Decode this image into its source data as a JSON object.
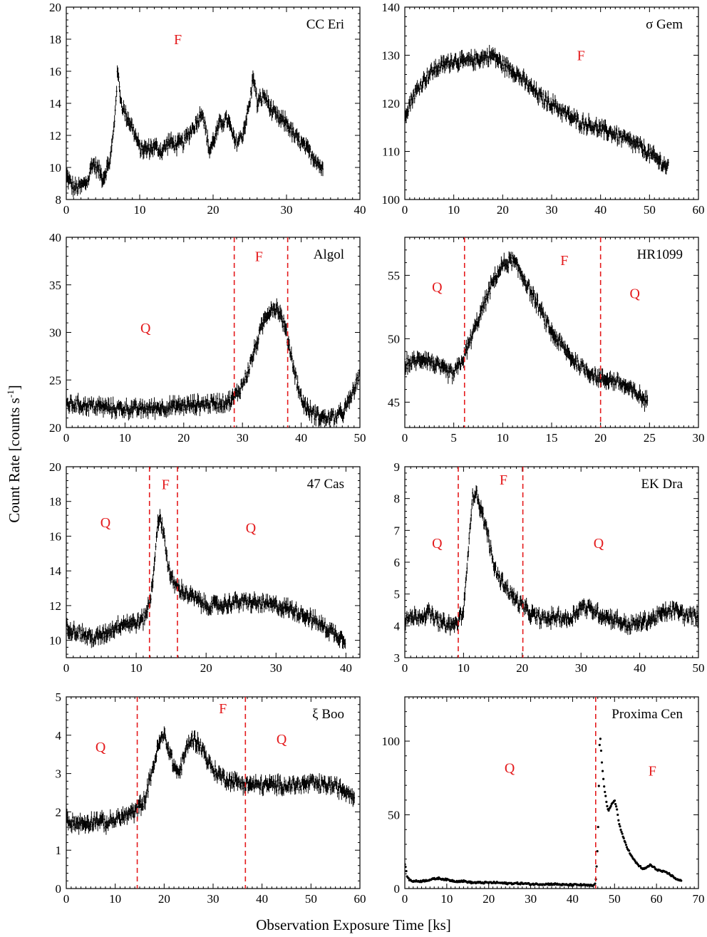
{
  "figure": {
    "ylabel_main": "Count Rate [counts s",
    "ylabel_sup": "-1",
    "ylabel_close": "]",
    "xlabel": "Observation Exposure Time [ks]"
  },
  "colors": {
    "axis": "#000000",
    "data": "#000000",
    "marker": "#e41a1c"
  },
  "chart_data": [
    {
      "type": "scatter",
      "star": "CC Eri",
      "xlim": [
        0,
        40
      ],
      "ylim": [
        8,
        20
      ],
      "xticks": [
        0,
        10,
        20,
        30,
        40
      ],
      "yticks": [
        8,
        10,
        12,
        14,
        16,
        18,
        20
      ],
      "markers": [],
      "labels": [
        {
          "text": "F",
          "x": 15.2,
          "y": 18
        }
      ],
      "series": [
        {
          "x": [
            0,
            1,
            2,
            3,
            3.5,
            4.5,
            5,
            6,
            6.5,
            7,
            7.5,
            8,
            9,
            10,
            11,
            12,
            13,
            14,
            15,
            16,
            17,
            18,
            18.5,
            19.5,
            21,
            22,
            23,
            24,
            25,
            25.5,
            26,
            27,
            28,
            29,
            30,
            31,
            32,
            33,
            34,
            35
          ],
          "y": [
            9.5,
            8.7,
            8.8,
            9.2,
            10.3,
            9.8,
            9.3,
            10.5,
            12.5,
            16.0,
            14.0,
            13.4,
            12.5,
            11.2,
            11.1,
            11.3,
            11.0,
            11.6,
            11.4,
            11.6,
            12.3,
            13.0,
            13.6,
            11.0,
            12.8,
            13.0,
            11.5,
            12.0,
            14.0,
            15.8,
            14.0,
            14.5,
            13.5,
            13.0,
            12.8,
            12.0,
            11.5,
            11.0,
            10.5,
            9.8
          ]
        }
      ]
    },
    {
      "type": "scatter",
      "star": "σ Gem",
      "xlim": [
        0,
        60
      ],
      "ylim": [
        100,
        140
      ],
      "xticks": [
        0,
        10,
        20,
        30,
        40,
        50,
        60
      ],
      "yticks": [
        100,
        110,
        120,
        130,
        140
      ],
      "markers": [],
      "labels": [
        {
          "text": "F",
          "x": 36,
          "y": 130
        }
      ],
      "series": [
        {
          "x": [
            0,
            2,
            4,
            6,
            8,
            10,
            12,
            14,
            16,
            18,
            20,
            22,
            24,
            26,
            28,
            30,
            32,
            34,
            36,
            38,
            40,
            42,
            44,
            46,
            48,
            50,
            52,
            54
          ],
          "y": [
            118,
            122,
            125,
            127,
            128,
            129,
            128.5,
            129,
            129.5,
            130,
            128,
            127,
            125,
            123,
            121,
            120,
            118.5,
            117,
            116,
            115.5,
            114.5,
            114,
            113,
            112,
            111,
            109.5,
            108,
            106.5
          ]
        }
      ]
    },
    {
      "type": "scatter",
      "star": "Algol",
      "xlim": [
        0,
        50
      ],
      "ylim": [
        20,
        40
      ],
      "xticks": [
        0,
        10,
        20,
        30,
        40,
        50
      ],
      "yticks": [
        20,
        25,
        30,
        35,
        40
      ],
      "markers": [
        28.6,
        37.7
      ],
      "labels": [
        {
          "text": "Q",
          "x": 13.5,
          "y": 30.5
        },
        {
          "text": "F",
          "x": 32.8,
          "y": 38
        }
      ],
      "series": [
        {
          "x": [
            0,
            2,
            4,
            6,
            8,
            10,
            12,
            14,
            16,
            18,
            20,
            22,
            24,
            26,
            28,
            29,
            30,
            31,
            32,
            33,
            34,
            35,
            36,
            37,
            38,
            39,
            40,
            41,
            42,
            43,
            44,
            45,
            46,
            47,
            48,
            49,
            50
          ],
          "y": [
            22.5,
            22.4,
            22.3,
            22.2,
            22.0,
            22.0,
            21.9,
            22.0,
            22.1,
            22.2,
            22.3,
            22.4,
            22.5,
            22.6,
            22.8,
            23.5,
            24.5,
            26.0,
            28.0,
            30.0,
            31.8,
            32.6,
            32.5,
            31.0,
            28.5,
            25.5,
            23.0,
            22.0,
            21.5,
            21.2,
            21.0,
            21.0,
            21.2,
            21.5,
            22.5,
            24.0,
            25.5
          ]
        }
      ]
    },
    {
      "type": "scatter",
      "star": "HR1099",
      "xlim": [
        0,
        30
      ],
      "ylim": [
        43,
        58
      ],
      "xticks": [
        0,
        5,
        10,
        15,
        20,
        25,
        30
      ],
      "yticks": [
        45,
        50,
        55
      ],
      "markers": [
        6.1,
        20.0
      ],
      "labels": [
        {
          "text": "Q",
          "x": 3.3,
          "y": 54.1
        },
        {
          "text": "F",
          "x": 16.3,
          "y": 56.2
        },
        {
          "text": "Q",
          "x": 23.5,
          "y": 53.6
        }
      ],
      "series": [
        {
          "x": [
            0,
            1,
            2,
            3,
            4,
            5,
            6,
            7,
            8,
            9,
            10,
            11,
            12,
            13,
            14,
            15,
            16,
            17,
            18,
            19,
            20,
            21,
            22,
            23,
            24,
            24.8
          ],
          "y": [
            48.0,
            48.2,
            48.5,
            48.0,
            47.5,
            47.2,
            48.5,
            50.5,
            52.5,
            54.5,
            55.8,
            56.2,
            55.0,
            53.5,
            52.0,
            50.5,
            49.5,
            48.5,
            47.8,
            47.3,
            46.8,
            46.8,
            46.5,
            46.0,
            45.5,
            45.0
          ]
        }
      ]
    },
    {
      "type": "scatter",
      "star": "47 Cas",
      "xlim": [
        0,
        42
      ],
      "ylim": [
        9,
        20
      ],
      "xticks": [
        0,
        10,
        20,
        30,
        40
      ],
      "yticks": [
        10,
        12,
        14,
        16,
        18,
        20
      ],
      "markers": [
        11.9,
        15.9
      ],
      "labels": [
        {
          "text": "Q",
          "x": 5.6,
          "y": 16.8
        },
        {
          "text": "F",
          "x": 14.2,
          "y": 19.0
        },
        {
          "text": "Q",
          "x": 26.4,
          "y": 16.5
        }
      ],
      "series": [
        {
          "x": [
            0,
            2,
            4,
            6,
            8,
            10,
            11,
            12,
            12.5,
            13,
            13.5,
            14,
            14.5,
            15,
            16,
            18,
            20,
            22,
            24,
            26,
            28,
            30,
            32,
            34,
            36,
            38,
            40
          ],
          "y": [
            10.8,
            10.4,
            10.1,
            10.5,
            11.0,
            11.0,
            11.2,
            12.2,
            14.0,
            16.5,
            17.0,
            16.0,
            14.5,
            13.5,
            13.0,
            12.5,
            12.0,
            12.0,
            12.2,
            12.2,
            12.1,
            12.0,
            11.8,
            11.5,
            11.0,
            10.5,
            10.0
          ]
        }
      ]
    },
    {
      "type": "scatter",
      "star": "EK Dra",
      "xlim": [
        0,
        50
      ],
      "ylim": [
        3,
        9
      ],
      "xticks": [
        0,
        10,
        20,
        30,
        40,
        50
      ],
      "yticks": [
        3,
        4,
        5,
        6,
        7,
        8,
        9
      ],
      "markers": [
        9.1,
        20.1
      ],
      "labels": [
        {
          "text": "Q",
          "x": 5.5,
          "y": 6.6
        },
        {
          "text": "F",
          "x": 16.8,
          "y": 8.6
        },
        {
          "text": "Q",
          "x": 33.0,
          "y": 6.6
        }
      ],
      "series": [
        {
          "x": [
            0,
            2,
            4,
            6,
            8,
            9,
            10,
            10.5,
            11,
            11.5,
            12,
            12.5,
            13,
            14,
            15,
            16,
            17,
            18,
            20,
            22,
            24,
            26,
            28,
            30,
            32,
            34,
            36,
            38,
            40,
            42,
            44,
            46,
            48,
            50
          ],
          "y": [
            4.2,
            4.3,
            4.4,
            4.1,
            4.0,
            4.1,
            4.5,
            5.5,
            7.0,
            8.0,
            8.2,
            8.0,
            7.6,
            7.0,
            6.0,
            5.5,
            5.3,
            5.0,
            4.6,
            4.3,
            4.2,
            4.3,
            4.2,
            4.6,
            4.5,
            4.3,
            4.2,
            4.0,
            4.1,
            4.2,
            4.4,
            4.5,
            4.3,
            4.3
          ]
        }
      ]
    },
    {
      "type": "scatter",
      "star": "ξ Boo",
      "xlim": [
        0,
        60
      ],
      "ylim": [
        0,
        5
      ],
      "xticks": [
        0,
        10,
        20,
        30,
        40,
        50,
        60
      ],
      "yticks": [
        0,
        1,
        2,
        3,
        4,
        5
      ],
      "markers": [
        14.5,
        36.6
      ],
      "labels": [
        {
          "text": "Q",
          "x": 7.0,
          "y": 3.7
        },
        {
          "text": "F",
          "x": 32.0,
          "y": 4.7
        },
        {
          "text": "Q",
          "x": 44.0,
          "y": 3.9
        }
      ],
      "series": [
        {
          "x": [
            0,
            2,
            4,
            6,
            8,
            10,
            12,
            14,
            16,
            17,
            18,
            19,
            20,
            21,
            22,
            23,
            24,
            25,
            26,
            27,
            28,
            29,
            30,
            32,
            34,
            36,
            38,
            40,
            42,
            44,
            46,
            48,
            50,
            52,
            54,
            56,
            58,
            59
          ],
          "y": [
            1.8,
            1.7,
            1.7,
            1.8,
            1.7,
            1.8,
            1.9,
            2.0,
            2.3,
            2.8,
            3.3,
            3.8,
            4.0,
            3.6,
            3.2,
            3.0,
            3.4,
            3.8,
            3.9,
            3.8,
            3.6,
            3.3,
            3.1,
            2.9,
            2.8,
            2.75,
            2.7,
            2.7,
            2.7,
            2.7,
            2.7,
            2.7,
            2.75,
            2.7,
            2.7,
            2.6,
            2.5,
            2.4
          ]
        }
      ]
    },
    {
      "type": "scatter",
      "star": "Proxima Cen",
      "xlim": [
        0,
        70
      ],
      "ylim": [
        0,
        130
      ],
      "xticks": [
        0,
        10,
        20,
        30,
        40,
        50,
        60,
        70
      ],
      "yticks": [
        0,
        50,
        100
      ],
      "markers": [
        45.5
      ],
      "labels": [
        {
          "text": "Q",
          "x": 25.0,
          "y": 82
        },
        {
          "text": "F",
          "x": 59.0,
          "y": 80
        }
      ],
      "series": [
        {
          "x": [
            0,
            0.5,
            1,
            2,
            4,
            6,
            8,
            10,
            12,
            14,
            16,
            18,
            20,
            22,
            24,
            26,
            28,
            30,
            32,
            34,
            36,
            38,
            40,
            42,
            44,
            45,
            45.5,
            46,
            46.5,
            47,
            47.5,
            48,
            48.5,
            49,
            49.5,
            50,
            50.5,
            51,
            52,
            53,
            54,
            55,
            56,
            57,
            58,
            58.5,
            59,
            60,
            61,
            62,
            63,
            64,
            65,
            66
          ],
          "y": [
            17,
            9,
            6,
            5,
            5,
            6,
            7,
            6,
            5,
            5,
            4,
            4,
            4,
            4,
            3.5,
            3.5,
            3.5,
            3,
            3,
            3,
            3,
            2.5,
            2.5,
            2.5,
            2,
            2,
            4,
            30,
            106,
            85,
            70,
            60,
            52,
            55,
            58,
            60,
            55,
            45,
            35,
            28,
            22,
            18,
            15,
            13,
            15,
            16,
            15,
            13,
            12,
            11,
            10,
            8,
            6,
            5
          ]
        }
      ]
    }
  ]
}
